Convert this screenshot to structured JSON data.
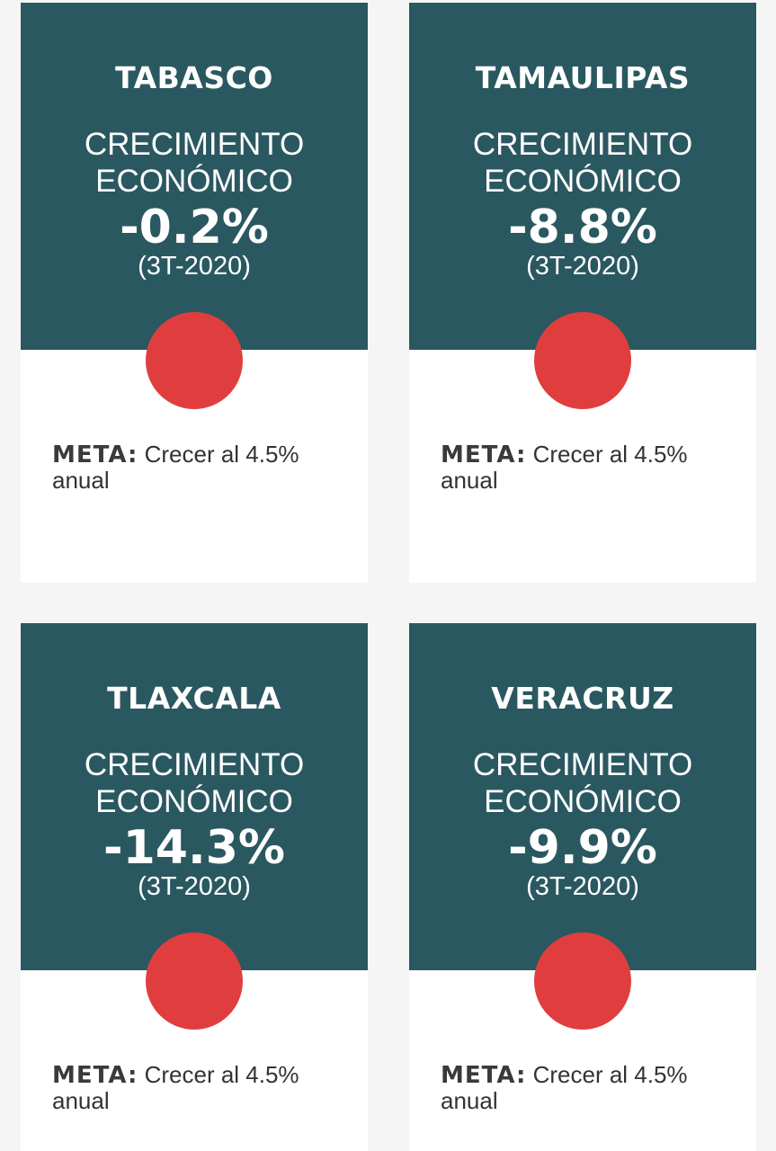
{
  "cards": [
    {
      "state": "TABASCO",
      "metric_line1": "CRECIMIENTO",
      "metric_line2": "ECONÓMICO",
      "value": "-0.2%",
      "period": "(3T-2020)",
      "status_color": "#e03e3e",
      "goal_label": "META:",
      "goal_text": "Crecer al 4.5% anual"
    },
    {
      "state": "TAMAULIPAS",
      "metric_line1": "CRECIMIENTO",
      "metric_line2": "ECONÓMICO",
      "value": "-8.8%",
      "period": "(3T-2020)",
      "status_color": "#e03e3e",
      "goal_label": "META:",
      "goal_text": "Crecer al 4.5% anual"
    },
    {
      "state": "TLAXCALA",
      "metric_line1": "CRECIMIENTO",
      "metric_line2": "ECONÓMICO",
      "value": "-14.3%",
      "period": "(3T-2020)",
      "status_color": "#e03e3e",
      "goal_label": "META:",
      "goal_text": "Crecer al 4.5% anual"
    },
    {
      "state": "VERACRUZ",
      "metric_line1": "CRECIMIENTO",
      "metric_line2": "ECONÓMICO",
      "value": "-9.9%",
      "period": "(3T-2020)",
      "status_color": "#e03e3e",
      "goal_label": "META:",
      "goal_text": "Crecer al 4.5% anual"
    }
  ],
  "colors": {
    "header_bg": "#2a5860",
    "status_red": "#e03e3e",
    "page_bg": "#f5f5f5"
  }
}
